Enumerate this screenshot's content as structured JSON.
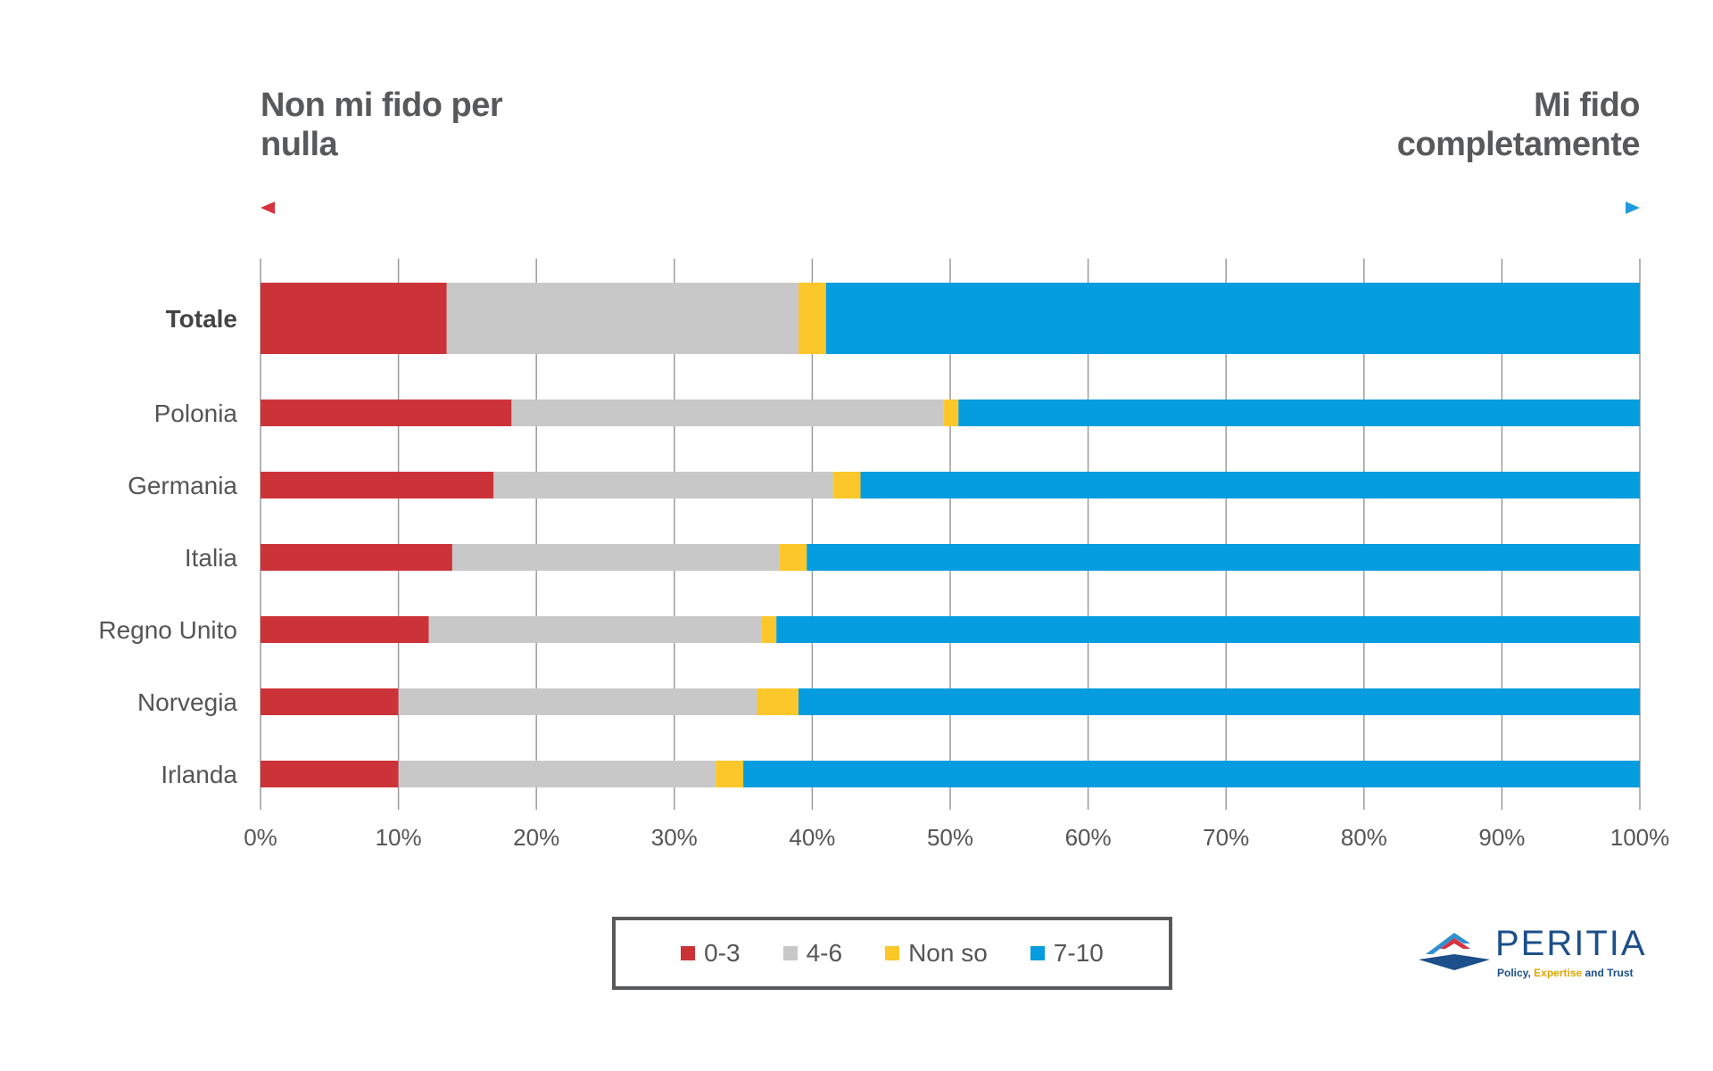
{
  "labels": {
    "left": "Non mi fido per\nnulla",
    "right": "Mi fido\ncompletamente"
  },
  "colors": {
    "arrow_left": "#d7323f",
    "arrow_right": "#1f9ae0",
    "grid": "#9b9b9b"
  },
  "chart_data": {
    "type": "bar",
    "orientation": "horizontal",
    "stacked": true,
    "categories": [
      "Totale",
      "Polonia",
      "Germania",
      "Italia",
      "Regno Unito",
      "Norvegia",
      "Irlanda"
    ],
    "series": [
      {
        "name": "0-3",
        "color": "#cc3339",
        "values": [
          13.5,
          18.2,
          16.9,
          13.9,
          12.2,
          10.0,
          10.0
        ]
      },
      {
        "name": "4-6",
        "color": "#c8c8c8",
        "values": [
          25.5,
          31.3,
          24.6,
          23.7,
          24.1,
          26.0,
          23.0
        ]
      },
      {
        "name": "Non so",
        "color": "#fcc72a",
        "values": [
          2.0,
          1.1,
          2.0,
          2.0,
          1.1,
          3.0,
          2.0
        ]
      },
      {
        "name": "7-10",
        "color": "#059ddf",
        "values": [
          59.0,
          49.4,
          56.5,
          60.4,
          62.6,
          61.0,
          65.0
        ]
      }
    ],
    "xlim": [
      0,
      100
    ],
    "x_ticks": [
      "0%",
      "10%",
      "20%",
      "30%",
      "40%",
      "50%",
      "60%",
      "70%",
      "80%",
      "90%",
      "100%"
    ],
    "xlabel": "",
    "ylabel": "",
    "grid": true,
    "legend_position": "bottom-center",
    "highlighted_category": "Totale"
  },
  "logo": {
    "name": "PERITIA",
    "tagline_a": "Policy, ",
    "tagline_b": "Expertise",
    "tagline_c": " and Trust"
  }
}
